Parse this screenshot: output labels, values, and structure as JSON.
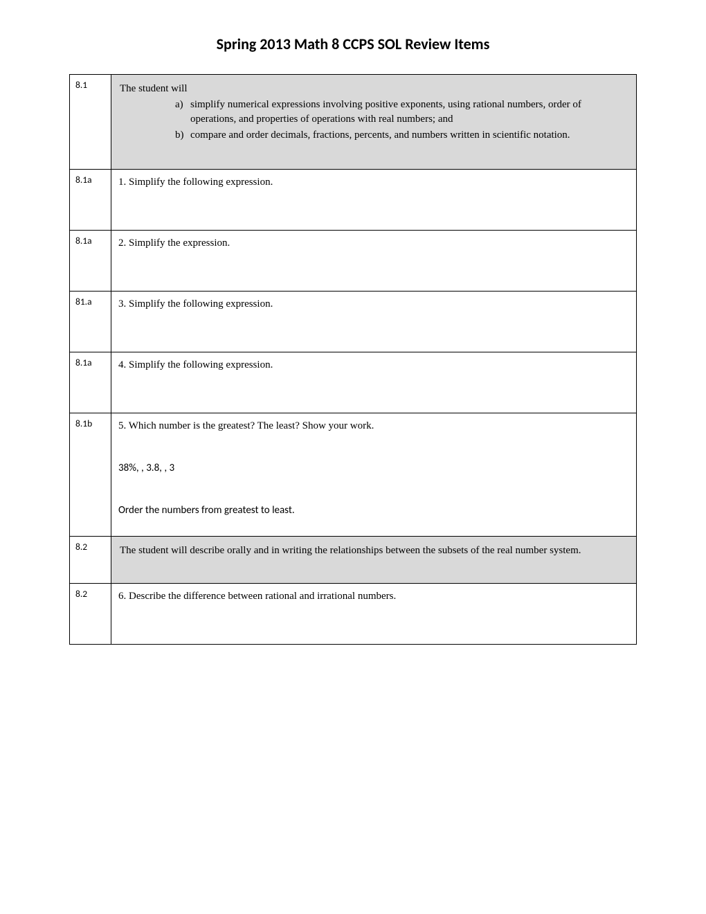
{
  "title": "Spring 2013 Math 8 CCPS SOL Review Items",
  "rows": [
    {
      "label": "8.1",
      "intro": "The student will",
      "items": [
        {
          "marker": "a)",
          "text": "simplify numerical expressions involving positive exponents, using rational numbers, order of operations, and properties of operations with real numbers; and"
        },
        {
          "marker": "b)",
          "text": "compare and order decimals, fractions, percents, and numbers written in scientific notation."
        }
      ]
    },
    {
      "label": "8.1a",
      "text": "1. Simplify the following expression."
    },
    {
      "label": "8.1a",
      "text": "2. Simplify the expression."
    },
    {
      "label": "81.a",
      "text": "3. Simplify the following expression."
    },
    {
      "label": "8.1a",
      "text": "4. Simplify the following expression."
    },
    {
      "label": "8.1b",
      "q": "5. Which number is the greatest?  The least?  Show your work.",
      "values": "38%, , 3.8,  , 3",
      "order": "Order the numbers from greatest to least."
    },
    {
      "label": "8.2",
      "text": "The student will describe orally and in writing the relationships between the subsets of the real number system."
    },
    {
      "label": "8.2",
      "text": "6. Describe the difference between rational and irrational numbers."
    }
  ]
}
